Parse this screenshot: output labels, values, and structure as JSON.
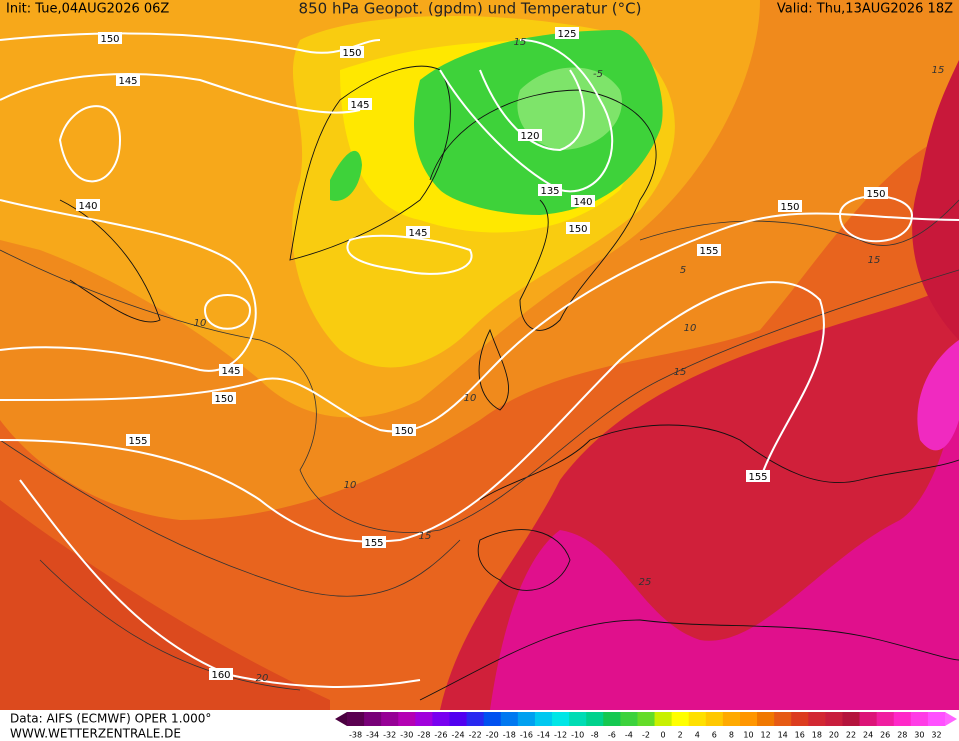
{
  "header": {
    "init": "Init: Tue,04AUG2026 06Z",
    "title": "850 hPa Geopot. (gpdm) und Temperatur (°C)",
    "valid": "Valid: Thu,13AUG2026 18Z"
  },
  "footer": {
    "source": "Data: AIFS (ECMWF) OPER 1.000°",
    "url": "WWW.WETTERZENTRALE.DE"
  },
  "colorbar": {
    "labels": [
      "-38",
      "-34",
      "-32",
      "-30",
      "-28",
      "-26",
      "-24",
      "-22",
      "-20",
      "-18",
      "-16",
      "-14",
      "-12",
      "-10",
      "-8",
      "-6",
      "-4",
      "-2",
      "0",
      "2",
      "4",
      "6",
      "8",
      "10",
      "12",
      "14",
      "16",
      "18",
      "20",
      "22",
      "24",
      "26",
      "28",
      "30",
      "32"
    ]
  },
  "geopotential_labels": [
    "150",
    "150",
    "145",
    "145",
    "125",
    "120",
    "135",
    "140",
    "145",
    "140",
    "150",
    "150",
    "155",
    "145",
    "150",
    "150",
    "155",
    "155",
    "155",
    "160",
    "150"
  ],
  "temperature_labels": [
    "10",
    "10",
    "15",
    "15",
    "15",
    "-5",
    "5",
    "15",
    "10",
    "20",
    "25",
    "15",
    "10"
  ]
}
